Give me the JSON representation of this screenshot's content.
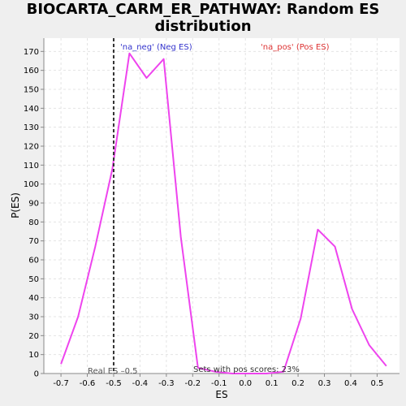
{
  "chart_data": {
    "type": "line",
    "title_line1": "BIOCARTA_CARM_ER_PATHWAY: Random ES",
    "title_line2": "distribution",
    "xlabel": "ES",
    "ylabel": "P(ES)",
    "xlim": [
      -0.765,
      0.585
    ],
    "ylim": [
      0,
      177
    ],
    "xticks": [
      -0.7,
      -0.6,
      -0.5,
      -0.4,
      -0.3,
      -0.2,
      -0.1,
      0.0,
      0.1,
      0.2,
      0.3,
      0.4,
      0.5
    ],
    "xtick_labels": [
      "-0.7",
      "-0.6",
      "-0.5",
      "-0.4",
      "-0.3",
      "-0.2",
      "-0.1",
      "0.0",
      "0.1",
      "0.2",
      "0.3",
      "0.4",
      "0.5"
    ],
    "yticks": [
      0,
      10,
      20,
      30,
      40,
      50,
      60,
      70,
      80,
      90,
      100,
      110,
      120,
      130,
      140,
      150,
      160,
      170
    ],
    "ytick_labels": [
      "0",
      "10",
      "20",
      "30",
      "40",
      "50",
      "60",
      "70",
      "80",
      "90",
      "100",
      "110",
      "120",
      "130",
      "140",
      "150",
      "160",
      "170"
    ],
    "grid": true,
    "series": [
      {
        "color": "#ee44ee",
        "x": [
          -0.7,
          -0.635,
          -0.57,
          -0.505,
          -0.44,
          -0.375,
          -0.31,
          -0.245,
          -0.18,
          -0.115,
          -0.05,
          0.015,
          0.08,
          0.145,
          0.21,
          0.275,
          0.34,
          0.405,
          0.47,
          0.535
        ],
        "y": [
          5,
          30,
          67,
          108,
          169,
          156,
          166,
          72,
          3,
          1,
          0,
          0,
          0,
          1,
          29,
          76,
          67,
          34,
          15,
          4
        ]
      }
    ],
    "real_es": {
      "x": -0.5,
      "label": "Real ES –0.5"
    },
    "annotations": {
      "neg_label": "'na_neg' (Neg ES)",
      "neg_color": "#3333cc",
      "pos_label": "'na_pos' (Pos ES)",
      "pos_color": "#dd3333",
      "pos_scores": "Sets with pos scores: 23%"
    }
  }
}
